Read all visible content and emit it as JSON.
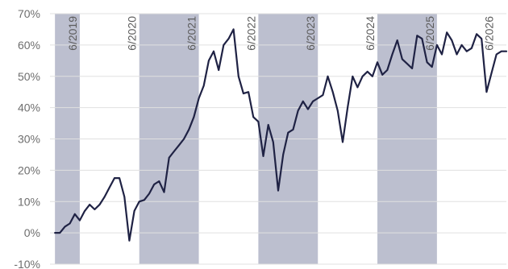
{
  "chart_data": {
    "type": "line",
    "title": "",
    "xlabel": "",
    "ylabel": "",
    "ylim": [
      -10,
      70
    ],
    "y_ticks": [
      -10,
      0,
      10,
      20,
      30,
      40,
      50,
      60,
      70
    ],
    "y_tick_labels": [
      "-10%",
      "0%",
      "10%",
      "20%",
      "30%",
      "40%",
      "50%",
      "60%",
      "70%"
    ],
    "x_range": [
      "2018-12",
      "2026-08"
    ],
    "grid": true,
    "colors": {
      "line": "#1f2244",
      "band": "#bcbfcf",
      "grid": "#e0e0e0"
    },
    "shaded_periods": [
      {
        "start": "2019-01",
        "end": "2019-06"
      },
      {
        "start": "2020-06",
        "end": "2021-06"
      },
      {
        "start": "2022-06",
        "end": "2023-06"
      },
      {
        "start": "2024-06",
        "end": "2025-06"
      }
    ],
    "vertical_labels": [
      {
        "date": "2019-06",
        "text": "6/2019"
      },
      {
        "date": "2020-06",
        "text": "6/2020"
      },
      {
        "date": "2021-06",
        "text": "6/2021"
      },
      {
        "date": "2022-06",
        "text": "6/2022"
      },
      {
        "date": "2023-06",
        "text": "6/2023"
      },
      {
        "date": "2024-06",
        "text": "6/2024"
      },
      {
        "date": "2025-06",
        "text": "6/2025"
      },
      {
        "date": "2026-06",
        "text": "6/2026"
      }
    ],
    "series": [
      {
        "x": [
          "2019-01",
          "2019-02",
          "2019-03",
          "2019-04",
          "2019-05",
          "2019-06",
          "2019-07",
          "2019-08",
          "2019-09",
          "2019-10",
          "2019-11",
          "2019-12",
          "2020-01",
          "2020-02",
          "2020-03",
          "2020-04",
          "2020-05",
          "2020-06",
          "2020-07",
          "2020-08",
          "2020-09",
          "2020-10",
          "2020-11",
          "2020-12",
          "2021-01",
          "2021-02",
          "2021-03",
          "2021-04",
          "2021-05",
          "2021-06",
          "2021-07",
          "2021-08",
          "2021-09",
          "2021-10",
          "2021-11",
          "2021-12",
          "2022-01",
          "2022-02",
          "2022-03",
          "2022-04",
          "2022-05",
          "2022-06",
          "2022-07",
          "2022-08",
          "2022-09",
          "2022-10",
          "2022-11",
          "2022-12",
          "2023-01",
          "2023-02",
          "2023-03",
          "2023-04",
          "2023-05",
          "2023-06",
          "2023-07",
          "2023-08",
          "2023-09",
          "2023-10",
          "2023-11",
          "2023-12",
          "2024-01",
          "2024-02",
          "2024-03",
          "2024-04",
          "2024-05",
          "2024-06",
          "2024-07",
          "2024-08",
          "2024-09",
          "2024-10",
          "2024-11",
          "2024-12",
          "2025-01",
          "2025-02",
          "2025-03",
          "2025-04",
          "2025-05",
          "2025-06",
          "2025-07",
          "2025-08",
          "2025-09",
          "2025-10",
          "2025-11",
          "2025-12",
          "2026-01",
          "2026-02",
          "2026-03",
          "2026-04",
          "2026-05",
          "2026-06",
          "2026-07",
          "2026-08"
        ],
        "values": [
          0,
          0,
          2,
          3,
          6,
          4,
          7,
          9,
          7.5,
          9,
          11.5,
          14.5,
          17.5,
          17.5,
          11.5,
          -2.5,
          7,
          10,
          10.5,
          12.5,
          15.5,
          16.5,
          13,
          24,
          26,
          28,
          30,
          33,
          37,
          43,
          47,
          55,
          58,
          52,
          60,
          62,
          65,
          50,
          44.5,
          45,
          37,
          35.5,
          24.5,
          34.5,
          29,
          13.5,
          25,
          32,
          33,
          39,
          42,
          39.5,
          42,
          43,
          44,
          50,
          45,
          39,
          29,
          40,
          50,
          46.5,
          50,
          51.5,
          50,
          54.5,
          50.5,
          52,
          57,
          61.5,
          55.5,
          54,
          52.5,
          63,
          62,
          54.5,
          53,
          60,
          57,
          64,
          61.5,
          57,
          60,
          58,
          59,
          63.5,
          62,
          45,
          51,
          57,
          58,
          58
        ]
      }
    ]
  }
}
